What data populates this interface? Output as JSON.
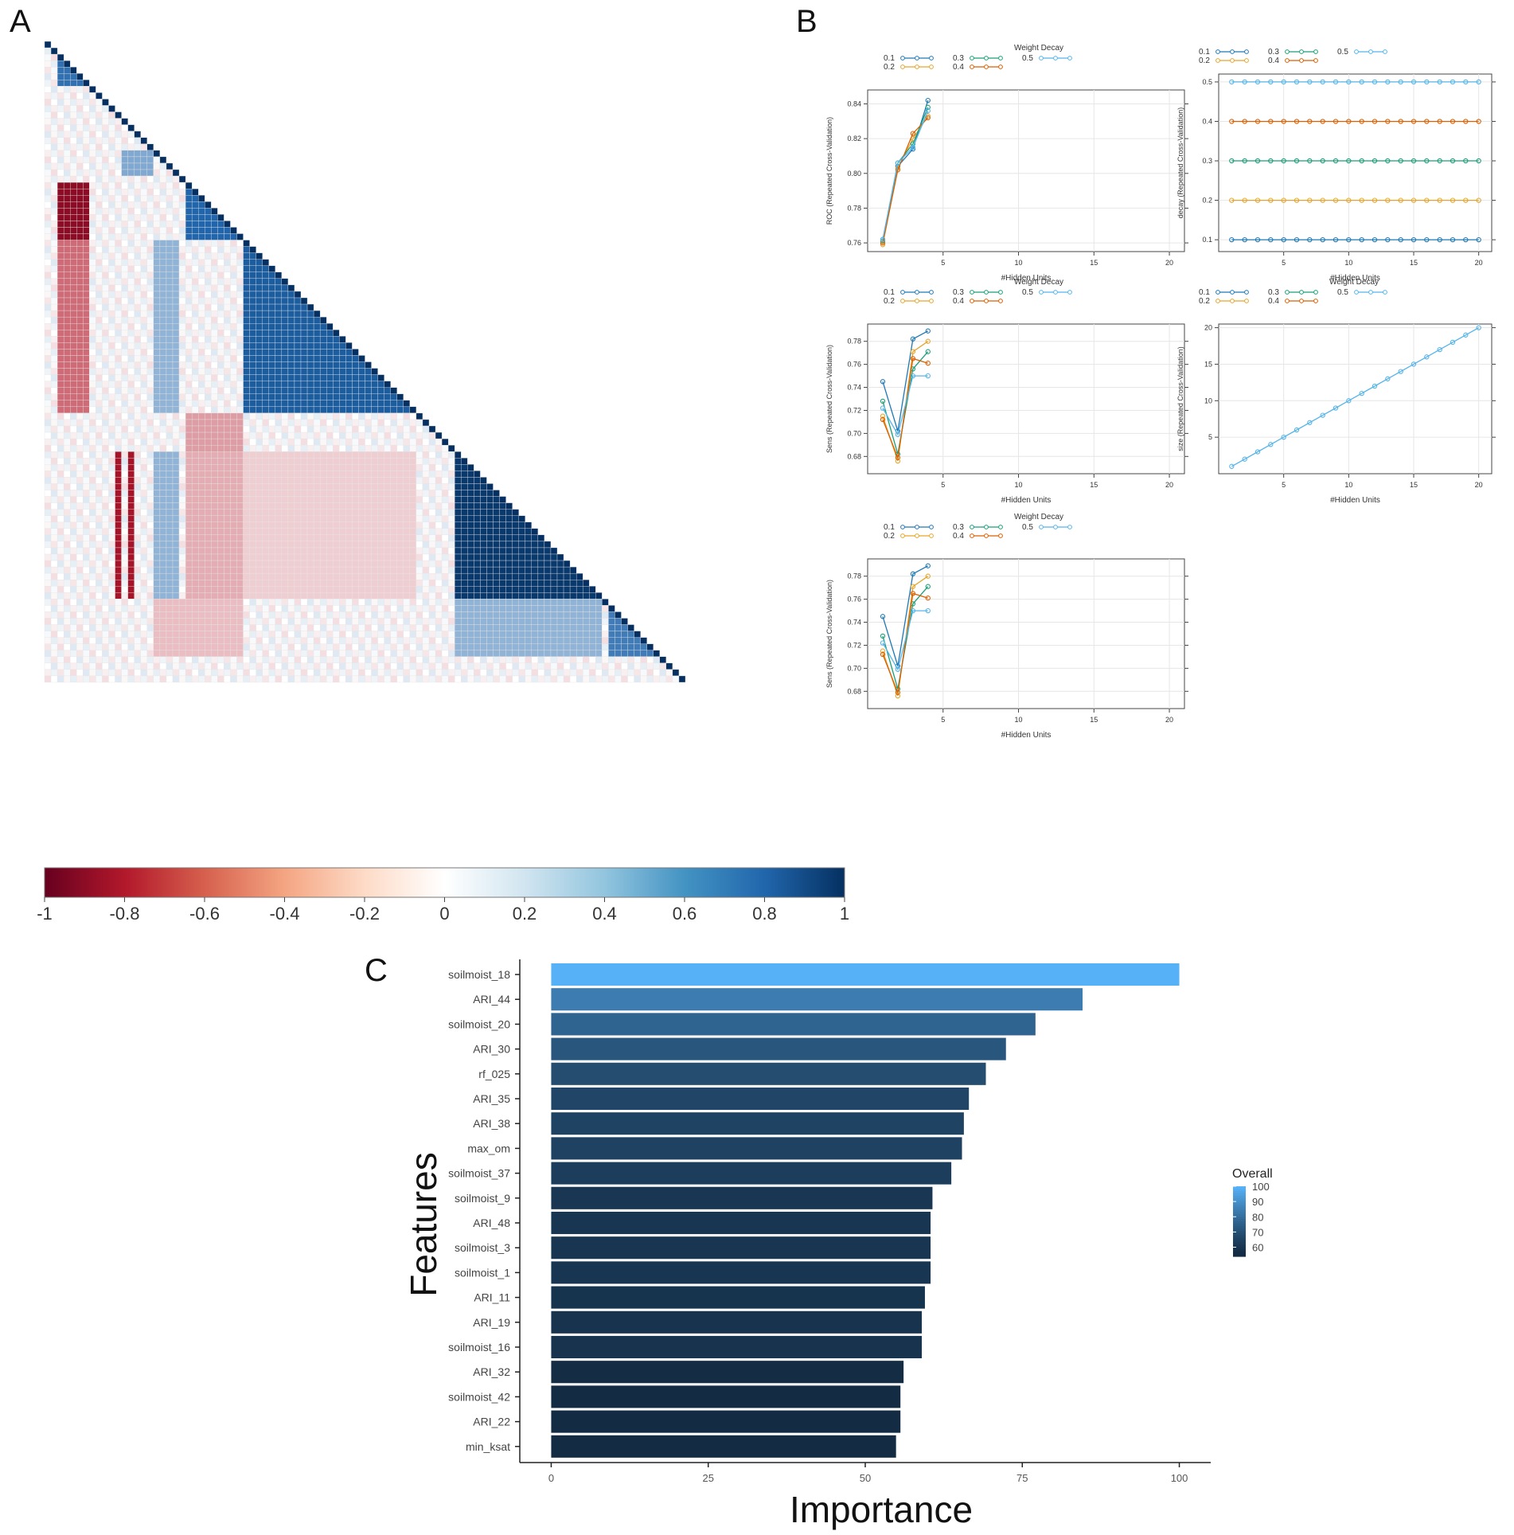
{
  "panels": {
    "a": "A",
    "b": "B",
    "c": "C"
  },
  "heatmap": {
    "colorbar_ticks": [
      "-1",
      "-0.8",
      "-0.6",
      "-0.4",
      "-0.2",
      "0",
      "0.2",
      "0.4",
      "0.6",
      "0.8",
      "1"
    ],
    "colors": {
      "neg": "#67001f",
      "mid": "#f7f7f7",
      "pos": "#053061"
    }
  },
  "chart_data": [
    {
      "type": "line",
      "title": "",
      "legend_title": "Weight Decay",
      "xlabel": "#Hidden Units",
      "ylabel": "ROC (Repeated Cross-Validation)",
      "xlim": [
        0,
        21
      ],
      "ylim": [
        0.755,
        0.848
      ],
      "xticks": [
        5,
        10,
        15,
        20
      ],
      "yticks": [
        "0.76",
        "0.78",
        "0.80",
        "0.82",
        "0.84"
      ],
      "series": [
        {
          "name": "0.1",
          "x": [
            1,
            2,
            3,
            4
          ],
          "values": [
            0.762,
            0.804,
            0.814,
            0.842
          ],
          "color": "#1f78b4"
        },
        {
          "name": "0.2",
          "x": [
            1,
            2,
            3,
            4
          ],
          "values": [
            0.759,
            0.803,
            0.82,
            0.833
          ],
          "color": "#e6a52a"
        },
        {
          "name": "0.3",
          "x": [
            1,
            2,
            3,
            4
          ],
          "values": [
            0.761,
            0.806,
            0.817,
            0.838
          ],
          "color": "#1b9e77"
        },
        {
          "name": "0.4",
          "x": [
            1,
            2,
            3,
            4
          ],
          "values": [
            0.76,
            0.802,
            0.823,
            0.832
          ],
          "color": "#d95f02"
        },
        {
          "name": "0.5",
          "x": [
            1,
            2,
            3,
            4
          ],
          "values": [
            0.762,
            0.806,
            0.815,
            0.836
          ],
          "color": "#56b4e9"
        }
      ]
    },
    {
      "type": "line",
      "title": "",
      "legend_title": "",
      "xlabel": "#Hidden Units",
      "ylabel": "decay (Repeated Cross-Validation)",
      "xlim": [
        0,
        21
      ],
      "ylim": [
        0.07,
        0.52
      ],
      "xticks": [
        5,
        10,
        15,
        20
      ],
      "yticks": [
        "0.1",
        "0.2",
        "0.3",
        "0.4",
        "0.5"
      ],
      "series": [
        {
          "name": "0.1",
          "x": [
            1,
            2,
            3,
            4,
            5,
            6,
            7,
            8,
            9,
            10,
            11,
            12,
            13,
            14,
            15,
            16,
            17,
            18,
            19,
            20
          ],
          "values": [
            0.1,
            0.1,
            0.1,
            0.1,
            0.1,
            0.1,
            0.1,
            0.1,
            0.1,
            0.1,
            0.1,
            0.1,
            0.1,
            0.1,
            0.1,
            0.1,
            0.1,
            0.1,
            0.1,
            0.1
          ],
          "color": "#1f78b4"
        },
        {
          "name": "0.2",
          "x": [
            1,
            2,
            3,
            4,
            5,
            6,
            7,
            8,
            9,
            10,
            11,
            12,
            13,
            14,
            15,
            16,
            17,
            18,
            19,
            20
          ],
          "values": [
            0.2,
            0.2,
            0.2,
            0.2,
            0.2,
            0.2,
            0.2,
            0.2,
            0.2,
            0.2,
            0.2,
            0.2,
            0.2,
            0.2,
            0.2,
            0.2,
            0.2,
            0.2,
            0.2,
            0.2
          ],
          "color": "#e6a52a"
        },
        {
          "name": "0.3",
          "x": [
            1,
            2,
            3,
            4,
            5,
            6,
            7,
            8,
            9,
            10,
            11,
            12,
            13,
            14,
            15,
            16,
            17,
            18,
            19,
            20
          ],
          "values": [
            0.3,
            0.3,
            0.3,
            0.3,
            0.3,
            0.3,
            0.3,
            0.3,
            0.3,
            0.3,
            0.3,
            0.3,
            0.3,
            0.3,
            0.3,
            0.3,
            0.3,
            0.3,
            0.3,
            0.3
          ],
          "color": "#1b9e77"
        },
        {
          "name": "0.4",
          "x": [
            1,
            2,
            3,
            4,
            5,
            6,
            7,
            8,
            9,
            10,
            11,
            12,
            13,
            14,
            15,
            16,
            17,
            18,
            19,
            20
          ],
          "values": [
            0.4,
            0.4,
            0.4,
            0.4,
            0.4,
            0.4,
            0.4,
            0.4,
            0.4,
            0.4,
            0.4,
            0.4,
            0.4,
            0.4,
            0.4,
            0.4,
            0.4,
            0.4,
            0.4,
            0.4
          ],
          "color": "#d95f02"
        },
        {
          "name": "0.5",
          "x": [
            1,
            2,
            3,
            4,
            5,
            6,
            7,
            8,
            9,
            10,
            11,
            12,
            13,
            14,
            15,
            16,
            17,
            18,
            19,
            20
          ],
          "values": [
            0.5,
            0.5,
            0.5,
            0.5,
            0.5,
            0.5,
            0.5,
            0.5,
            0.5,
            0.5,
            0.5,
            0.5,
            0.5,
            0.5,
            0.5,
            0.5,
            0.5,
            0.5,
            0.5,
            0.5
          ],
          "color": "#56b4e9"
        }
      ]
    },
    {
      "type": "line",
      "title": "",
      "legend_title": "Weight Decay",
      "xlabel": "#Hidden Units",
      "ylabel": "Sens (Repeated Cross-Validation)",
      "xlim": [
        0,
        21
      ],
      "ylim": [
        0.665,
        0.795
      ],
      "xticks": [
        5,
        10,
        15,
        20
      ],
      "yticks": [
        "0.68",
        "0.70",
        "0.72",
        "0.74",
        "0.76",
        "0.78"
      ],
      "series": [
        {
          "name": "0.1",
          "x": [
            1,
            2,
            3,
            4
          ],
          "values": [
            0.745,
            0.702,
            0.782,
            0.789
          ],
          "color": "#1f78b4"
        },
        {
          "name": "0.2",
          "x": [
            1,
            2,
            3,
            4
          ],
          "values": [
            0.715,
            0.676,
            0.771,
            0.78
          ],
          "color": "#e6a52a"
        },
        {
          "name": "0.3",
          "x": [
            1,
            2,
            3,
            4
          ],
          "values": [
            0.728,
            0.682,
            0.756,
            0.771
          ],
          "color": "#1b9e77"
        },
        {
          "name": "0.4",
          "x": [
            1,
            2,
            3,
            4
          ],
          "values": [
            0.712,
            0.679,
            0.765,
            0.761
          ],
          "color": "#d95f02"
        },
        {
          "name": "0.5",
          "x": [
            1,
            2,
            3,
            4
          ],
          "values": [
            0.722,
            0.699,
            0.75,
            0.75
          ],
          "color": "#56b4e9"
        }
      ]
    },
    {
      "type": "line",
      "title": "",
      "legend_title": "Weight Decay",
      "xlabel": "#Hidden Units",
      "ylabel": "size (Repeated Cross-Validation)",
      "xlim": [
        0,
        21
      ],
      "ylim": [
        0,
        20.5
      ],
      "xticks": [
        5,
        10,
        15,
        20
      ],
      "yticks": [
        "5",
        "10",
        "15",
        "20"
      ],
      "series": [
        {
          "name": "0.1",
          "x": [],
          "values": [],
          "color": "#1f78b4"
        },
        {
          "name": "0.2",
          "x": [],
          "values": [],
          "color": "#e6a52a"
        },
        {
          "name": "0.3",
          "x": [],
          "values": [],
          "color": "#1b9e77"
        },
        {
          "name": "0.4",
          "x": [],
          "values": [],
          "color": "#d95f02"
        },
        {
          "name": "0.5",
          "x": [
            1,
            2,
            3,
            4,
            5,
            6,
            7,
            8,
            9,
            10,
            11,
            12,
            13,
            14,
            15,
            16,
            17,
            18,
            19,
            20
          ],
          "values": [
            1,
            2,
            3,
            4,
            5,
            6,
            7,
            8,
            9,
            10,
            11,
            12,
            13,
            14,
            15,
            16,
            17,
            18,
            19,
            20
          ],
          "color": "#56b4e9"
        }
      ]
    },
    {
      "type": "line",
      "title": "",
      "legend_title": "Weight Decay",
      "xlabel": "#Hidden Units",
      "ylabel": "Sens (Repeated Cross-Validation)",
      "xlim": [
        0,
        21
      ],
      "ylim": [
        0.665,
        0.795
      ],
      "xticks": [
        5,
        10,
        15,
        20
      ],
      "yticks": [
        "0.68",
        "0.70",
        "0.72",
        "0.74",
        "0.76",
        "0.78"
      ],
      "series": [
        {
          "name": "0.1",
          "x": [
            1,
            2,
            3,
            4
          ],
          "values": [
            0.745,
            0.702,
            0.782,
            0.789
          ],
          "color": "#1f78b4"
        },
        {
          "name": "0.2",
          "x": [
            1,
            2,
            3,
            4
          ],
          "values": [
            0.715,
            0.676,
            0.771,
            0.78
          ],
          "color": "#e6a52a"
        },
        {
          "name": "0.3",
          "x": [
            1,
            2,
            3,
            4
          ],
          "values": [
            0.728,
            0.682,
            0.756,
            0.771
          ],
          "color": "#1b9e77"
        },
        {
          "name": "0.4",
          "x": [
            1,
            2,
            3,
            4
          ],
          "values": [
            0.712,
            0.679,
            0.765,
            0.761
          ],
          "color": "#d95f02"
        },
        {
          "name": "0.5",
          "x": [
            1,
            2,
            3,
            4
          ],
          "values": [
            0.722,
            0.699,
            0.75,
            0.75
          ],
          "color": "#56b4e9"
        }
      ]
    },
    {
      "type": "bar",
      "orientation": "horizontal",
      "title": "",
      "xlabel": "Importance",
      "ylabel": "Features",
      "xlim": [
        -5,
        105
      ],
      "xticks": [
        0,
        25,
        50,
        75,
        100
      ],
      "legend_title": "Overall",
      "legend_ticks": [
        100,
        90,
        80,
        70,
        60
      ],
      "color_low": "#132b43",
      "color_high": "#56b1f7",
      "categories": [
        "soilmoist_18",
        "ARI_44",
        "soilmoist_20",
        "ARI_30",
        "rf_025",
        "ARI_35",
        "ARI_38",
        "max_om",
        "soilmoist_37",
        "soilmoist_9",
        "ARI_48",
        "soilmoist_3",
        "soilmoist_1",
        "ARI_11",
        "ARI_19",
        "soilmoist_16",
        "ARI_32",
        "soilmoist_42",
        "ARI_22",
        "min_ksat"
      ],
      "values": [
        100,
        84.6,
        77.1,
        72.4,
        69.2,
        66.5,
        65.7,
        65.4,
        63.7,
        60.7,
        60.4,
        60.4,
        60.4,
        59.5,
        59.0,
        59.0,
        56.1,
        55.6,
        55.6,
        54.9
      ]
    }
  ]
}
